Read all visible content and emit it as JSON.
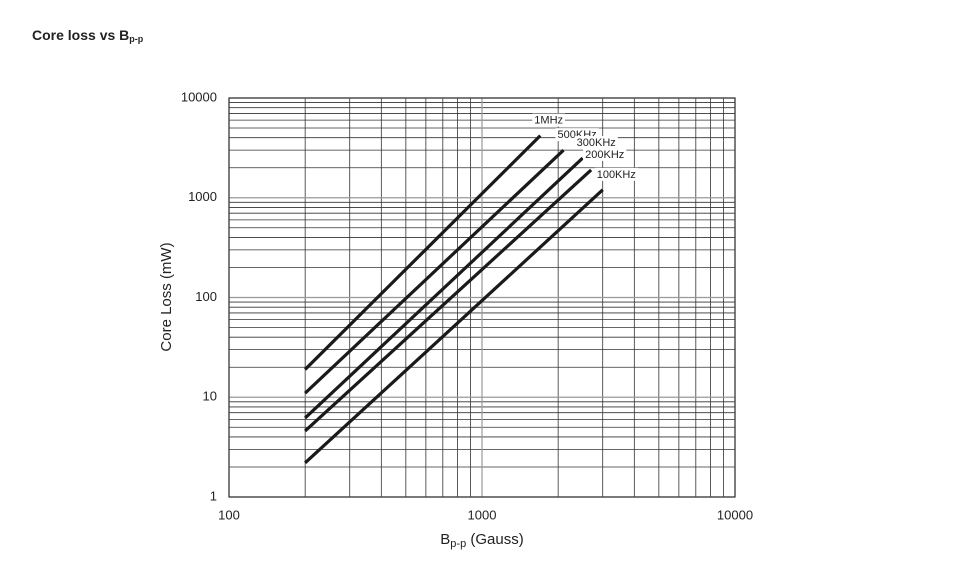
{
  "chart_data": {
    "type": "line",
    "title": {
      "text": "Core loss vs B",
      "subscript": "p-p"
    },
    "x_label": {
      "text": "B",
      "subscript": "p-p",
      "suffix": " (Gauss)"
    },
    "y_label": "Core Loss (mW)",
    "x_log": true,
    "y_log": true,
    "grid": true,
    "xlim": [
      100,
      10000
    ],
    "xticks": [
      100,
      1000,
      10000
    ],
    "xminorticks": [
      200,
      300,
      400,
      500,
      600,
      700,
      800,
      900,
      2000,
      3000,
      4000,
      5000,
      6000,
      7000,
      8000,
      9000
    ],
    "ylim": [
      1,
      10000
    ],
    "yticks": [
      1,
      10,
      100,
      1000,
      10000
    ],
    "yminorticks": [
      2,
      3,
      4,
      5,
      6,
      7,
      8,
      9,
      20,
      30,
      40,
      50,
      60,
      70,
      80,
      90,
      200,
      300,
      400,
      500,
      600,
      700,
      800,
      900,
      2000,
      3000,
      4000,
      5000,
      6000,
      7000,
      8000,
      9000
    ],
    "series": [
      {
        "name": "1MHz",
        "color": "#1a1a1a",
        "x": [
          200,
          1700
        ],
        "values": [
          19,
          4200
        ]
      },
      {
        "name": "500KHz",
        "color": "#1a1a1a",
        "x": [
          200,
          2100
        ],
        "values": [
          11,
          3000
        ]
      },
      {
        "name": "300KHz",
        "color": "#1a1a1a",
        "x": [
          200,
          2500
        ],
        "values": [
          6.2,
          2500
        ]
      },
      {
        "name": "200KHz",
        "color": "#1a1a1a",
        "x": [
          200,
          2700
        ],
        "values": [
          4.6,
          1900
        ]
      },
      {
        "name": "100KHz",
        "color": "#1a1a1a",
        "x": [
          200,
          3000
        ],
        "values": [
          2.2,
          1200
        ]
      }
    ]
  }
}
